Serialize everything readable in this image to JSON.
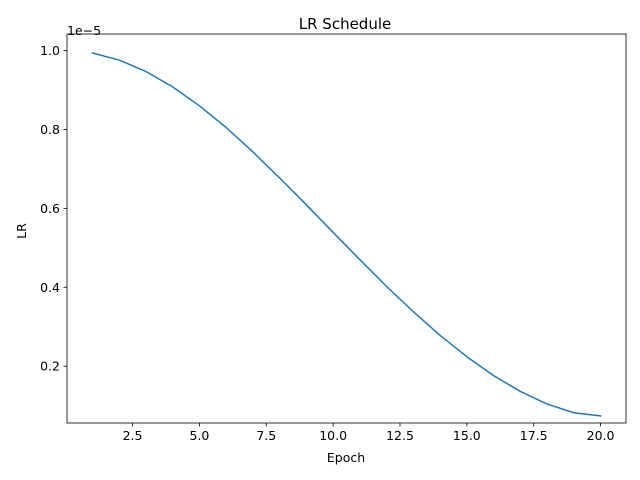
{
  "chart_data": {
    "type": "line",
    "title": "LR Schedule",
    "xlabel": "Epoch",
    "ylabel": "LR",
    "y_multiplier_label": "1e−5",
    "xlim": [
      0.05,
      20.95
    ],
    "ylim": [
      0.56,
      10.42
    ],
    "grid": false,
    "x_ticks": [
      2.5,
      5.0,
      7.5,
      10.0,
      12.5,
      15.0,
      17.5,
      20.0
    ],
    "x_tick_labels": [
      "2.5",
      "5.0",
      "7.5",
      "10.0",
      "12.5",
      "15.0",
      "17.5",
      "20.0"
    ],
    "y_ticks": [
      2,
      4,
      6,
      8,
      10
    ],
    "y_tick_labels": [
      "0.2",
      "0.4",
      "0.6",
      "0.8",
      "1.0"
    ],
    "series": [
      {
        "color": "#1f77b4",
        "x": [
          1,
          2,
          3,
          4,
          5,
          6,
          7,
          8,
          9,
          10,
          11,
          12,
          13,
          14,
          15,
          16,
          17,
          18,
          19,
          20
        ],
        "values": [
          9.94,
          9.76,
          9.47,
          9.08,
          8.6,
          8.05,
          7.43,
          6.77,
          6.09,
          5.39,
          4.7,
          4.02,
          3.38,
          2.78,
          2.24,
          1.76,
          1.36,
          1.04,
          0.82,
          0.74
        ]
      }
    ]
  }
}
